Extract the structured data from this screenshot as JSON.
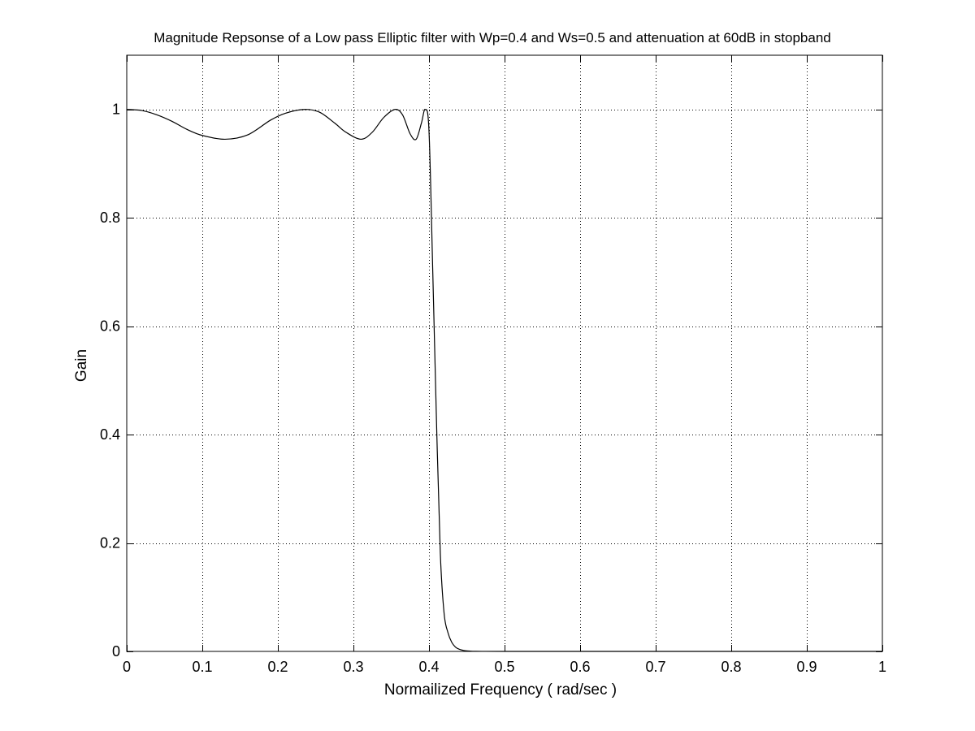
{
  "chart_data": {
    "type": "line",
    "title": "Magnitude Repsonse of a Low pass Elliptic filter with Wp=0.4 and Ws=0.5 and attenuation at 60dB in stopband",
    "xlabel": "Normailized Frequency ( rad/sec )",
    "ylabel": "Gain",
    "xlim": [
      0,
      1
    ],
    "ylim": [
      0,
      1.1
    ],
    "xticks": [
      0,
      0.1,
      0.2,
      0.3,
      0.4,
      0.5,
      0.6,
      0.7,
      0.8,
      0.9,
      1
    ],
    "xtick_labels": [
      "0",
      "0.1",
      "0.2",
      "0.3",
      "0.4",
      "0.5",
      "0.6",
      "0.7",
      "0.8",
      "0.9",
      "1"
    ],
    "yticks": [
      0,
      0.2,
      0.4,
      0.6,
      0.8,
      1
    ],
    "ytick_labels": [
      "0",
      "0.2",
      "0.4",
      "0.6",
      "0.8",
      "1"
    ],
    "grid": true,
    "grid_style": "dotted",
    "line_color": "#000000",
    "series": [
      {
        "x": [
          0,
          0.02,
          0.04,
          0.06,
          0.08,
          0.1,
          0.13,
          0.16,
          0.19,
          0.21,
          0.235,
          0.255,
          0.275,
          0.29,
          0.31,
          0.325,
          0.34,
          0.355,
          0.365,
          0.375,
          0.383,
          0.39,
          0.395,
          0.4,
          0.405,
          0.41,
          0.415,
          0.42,
          0.425,
          0.43,
          0.435,
          0.44,
          0.445,
          0.45,
          0.455,
          0.46,
          0.47,
          0.5,
          0.6,
          0.7,
          0.8,
          0.9,
          1
        ],
        "y": [
          1.0,
          0.998,
          0.99,
          0.978,
          0.963,
          0.952,
          0.945,
          0.953,
          0.98,
          0.993,
          1.0,
          0.995,
          0.975,
          0.958,
          0.945,
          0.958,
          0.985,
          1.0,
          0.99,
          0.955,
          0.945,
          0.975,
          1.0,
          0.96,
          0.7,
          0.42,
          0.18,
          0.07,
          0.035,
          0.017,
          0.008,
          0.004,
          0.002,
          0.001,
          0.0005,
          0.0002,
          0.0001,
          0.0,
          0.0,
          0.0,
          0.0,
          0.0,
          0.0
        ]
      }
    ]
  }
}
